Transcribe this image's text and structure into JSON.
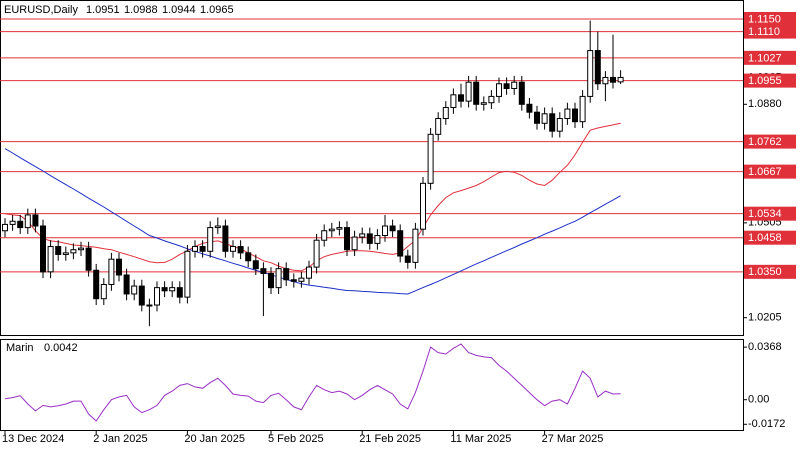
{
  "chart_data": {
    "type": "candlestick",
    "title": "EURUSD,Daily",
    "categories": [
      "13 Dec 2024",
      null,
      null,
      null,
      null,
      null,
      null,
      null,
      null,
      null,
      null,
      null,
      "2 Jan 2025",
      null,
      null,
      null,
      null,
      null,
      null,
      null,
      null,
      null,
      null,
      null,
      "20 Jan 2025",
      null,
      null,
      null,
      null,
      null,
      null,
      null,
      null,
      null,
      null,
      "5 Feb 2025",
      null,
      null,
      null,
      null,
      null,
      null,
      null,
      null,
      null,
      null,
      null,
      "21 Feb 2025",
      null,
      null,
      null,
      null,
      null,
      null,
      null,
      null,
      null,
      null,
      null,
      "11 Mar 2025",
      null,
      null,
      null,
      null,
      null,
      null,
      null,
      null,
      null,
      null,
      null,
      "27 Mar 2025",
      null,
      null,
      null,
      null,
      null,
      null,
      null,
      null,
      null,
      null
    ],
    "candles": [
      [
        1.048,
        1.052,
        1.046,
        1.05
      ],
      [
        1.05,
        1.053,
        1.048,
        1.051
      ],
      [
        1.051,
        1.053,
        1.047,
        1.049
      ],
      [
        1.049,
        1.055,
        1.047,
        1.053
      ],
      [
        1.053,
        1.055,
        1.0475,
        1.0495
      ],
      [
        1.0495,
        1.0515,
        1.033,
        1.035
      ],
      [
        1.035,
        1.045,
        1.033,
        1.043
      ],
      [
        1.043,
        1.045,
        1.0385,
        1.0405
      ],
      [
        1.0405,
        1.043,
        1.0385,
        1.041
      ],
      [
        1.041,
        1.044,
        1.039,
        1.042
      ],
      [
        1.042,
        1.0445,
        1.04,
        1.0425
      ],
      [
        1.0425,
        1.0445,
        1.0335,
        1.0355
      ],
      [
        1.0355,
        1.0375,
        1.0245,
        1.0265
      ],
      [
        1.0265,
        1.033,
        1.0245,
        1.031
      ],
      [
        1.031,
        1.041,
        1.029,
        1.039
      ],
      [
        1.039,
        1.041,
        1.032,
        1.034
      ],
      [
        1.034,
        1.036,
        1.026,
        1.028
      ],
      [
        1.028,
        1.0325,
        1.026,
        1.0305
      ],
      [
        1.0305,
        1.0325,
        1.0225,
        1.0245
      ],
      [
        1.0245,
        1.0265,
        1.0178,
        1.0245
      ],
      [
        1.0245,
        1.032,
        1.0225,
        1.03
      ],
      [
        1.03,
        1.032,
        1.027,
        1.029
      ],
      [
        1.029,
        1.032,
        1.027,
        1.03
      ],
      [
        1.03,
        1.032,
        1.025,
        1.027
      ],
      [
        1.027,
        1.0435,
        1.025,
        1.0415
      ],
      [
        1.0415,
        1.045,
        1.0395,
        1.043
      ],
      [
        1.043,
        1.045,
        1.0395,
        1.0415
      ],
      [
        1.0415,
        1.051,
        1.0395,
        1.049
      ],
      [
        1.049,
        1.0522,
        1.047,
        1.0495
      ],
      [
        1.0495,
        1.0515,
        1.0395,
        1.0415
      ],
      [
        1.0415,
        1.045,
        1.0395,
        1.043
      ],
      [
        1.043,
        1.045,
        1.039,
        1.041
      ],
      [
        1.041,
        1.043,
        1.0365,
        1.0385
      ],
      [
        1.0385,
        1.0405,
        1.034,
        1.036
      ],
      [
        1.036,
        1.038,
        1.021,
        1.0345
      ],
      [
        1.0345,
        1.0365,
        1.028,
        1.03
      ],
      [
        1.03,
        1.038,
        1.028,
        1.036
      ],
      [
        1.036,
        1.038,
        1.0305,
        1.0325
      ],
      [
        1.0325,
        1.0345,
        1.03,
        1.032
      ],
      [
        1.032,
        1.035,
        1.03,
        1.033
      ],
      [
        1.033,
        1.0385,
        1.031,
        1.0365
      ],
      [
        1.0365,
        1.047,
        1.0345,
        1.045
      ],
      [
        1.045,
        1.05,
        1.043,
        1.048
      ],
      [
        1.048,
        1.0505,
        1.046,
        1.0485
      ],
      [
        1.0485,
        1.051,
        1.0465,
        1.049
      ],
      [
        1.049,
        1.051,
        1.04,
        1.042
      ],
      [
        1.042,
        1.048,
        1.04,
        1.046
      ],
      [
        1.046,
        1.049,
        1.044,
        1.047
      ],
      [
        1.047,
        1.049,
        1.042,
        1.044
      ],
      [
        1.044,
        1.0485,
        1.042,
        1.0465
      ],
      [
        1.0465,
        1.053,
        1.0445,
        1.0495
      ],
      [
        1.0495,
        1.0515,
        1.046,
        1.048
      ],
      [
        1.048,
        1.05,
        1.038,
        1.04
      ],
      [
        1.04,
        1.042,
        1.036,
        1.038
      ],
      [
        1.038,
        1.0505,
        1.036,
        1.0485
      ],
      [
        1.0485,
        1.065,
        1.0465,
        1.063
      ],
      [
        1.063,
        1.0805,
        1.061,
        1.0785
      ],
      [
        1.0785,
        1.0855,
        1.0765,
        1.0835
      ],
      [
        1.0835,
        1.089,
        1.0815,
        1.087
      ],
      [
        1.087,
        1.093,
        1.085,
        1.091
      ],
      [
        1.091,
        1.0945,
        1.087,
        1.089
      ],
      [
        1.089,
        1.097,
        1.087,
        1.095
      ],
      [
        1.095,
        1.097,
        1.086,
        1.088
      ],
      [
        1.088,
        1.0905,
        1.086,
        1.0885
      ],
      [
        1.0885,
        1.0925,
        1.0865,
        1.0905
      ],
      [
        1.0905,
        1.0965,
        1.0885,
        1.0945
      ],
      [
        1.0945,
        1.0965,
        1.091,
        1.093
      ],
      [
        1.093,
        1.097,
        1.091,
        1.095
      ],
      [
        1.095,
        1.097,
        1.086,
        1.088
      ],
      [
        1.088,
        1.09,
        1.0835,
        1.0855
      ],
      [
        1.0855,
        1.0875,
        1.08,
        1.082
      ],
      [
        1.082,
        1.087,
        1.08,
        1.085
      ],
      [
        1.085,
        1.087,
        1.0775,
        1.0795
      ],
      [
        1.0795,
        1.0855,
        1.0775,
        1.0835
      ],
      [
        1.0835,
        1.0885,
        1.0815,
        1.0865
      ],
      [
        1.0865,
        1.0885,
        1.0805,
        1.0825
      ],
      [
        1.0825,
        1.0925,
        1.0805,
        1.0905
      ],
      [
        1.0905,
        1.1145,
        1.0885,
        1.105
      ],
      [
        1.105,
        1.111,
        1.0925,
        1.0945
      ],
      [
        1.0945,
        1.0985,
        1.089,
        1.0965
      ],
      [
        1.0965,
        1.11,
        1.093,
        1.095
      ],
      [
        1.0951,
        1.0988,
        1.0944,
        1.0965
      ]
    ],
    "series": [
      {
        "color": "#e0303a",
        "values": [
          1.0534,
          1.053,
          1.0528,
          1.051,
          1.048,
          1.0455,
          1.0448,
          1.0445,
          1.044,
          1.0435,
          1.0433,
          1.043,
          1.0428,
          1.0423,
          1.042,
          1.0412,
          1.0405,
          1.0398,
          1.039,
          1.0382,
          1.0379,
          1.038,
          1.039,
          1.0405,
          1.0417,
          1.043,
          1.044,
          1.0445,
          1.0448,
          1.044,
          1.043,
          1.0423,
          1.041,
          1.0398,
          1.0385,
          1.0379,
          1.0368,
          1.036,
          1.0355,
          1.0353,
          1.0365,
          1.0385,
          1.0398,
          1.0405,
          1.041,
          1.0415,
          1.0417,
          1.0417,
          1.0415,
          1.0412,
          1.0408,
          1.0405,
          1.041,
          1.043,
          1.045,
          1.049,
          1.053,
          1.056,
          1.0585,
          1.06,
          1.0607,
          1.0615,
          1.0623,
          1.0635,
          1.065,
          1.0664,
          1.0668,
          1.0665,
          1.0655,
          1.064,
          1.0628,
          1.0623,
          1.064,
          1.0665,
          1.0687,
          1.072,
          1.076,
          1.0798,
          1.0805,
          1.081,
          1.0815,
          1.082
        ]
      },
      {
        "color": "#1c2fc8",
        "values": [
          1.074,
          1.0726,
          1.0711,
          1.0697,
          1.0683,
          1.0669,
          1.0654,
          1.064,
          1.0626,
          1.0612,
          1.0598,
          1.0583,
          1.0569,
          1.0555,
          1.054,
          1.0525,
          1.051,
          1.0495,
          1.048,
          1.0465,
          1.0457,
          1.0448,
          1.044,
          1.0432,
          1.0423,
          1.0415,
          1.0407,
          1.04,
          1.0392,
          1.0385,
          1.0377,
          1.037,
          1.0362,
          1.0355,
          1.0348,
          1.0341,
          1.0333,
          1.0326,
          1.0319,
          1.0312,
          1.0308,
          1.0305,
          1.0301,
          1.0298,
          1.0294,
          1.0291,
          1.029,
          1.0288,
          1.0287,
          1.0285,
          1.0284,
          1.0283,
          1.0281,
          1.028,
          1.029,
          1.03,
          1.031,
          1.032,
          1.0331,
          1.0342,
          1.0353,
          1.0364,
          1.0375,
          1.0385,
          1.0396,
          1.0406,
          1.0417,
          1.0427,
          1.0438,
          1.0448,
          1.0458,
          1.0469,
          1.0479,
          1.0489,
          1.05,
          1.051,
          1.0523,
          1.0537,
          1.055,
          1.0564,
          1.0577,
          1.0591
        ]
      }
    ],
    "levels": [
      {
        "value": 1.115,
        "label": "1.1150"
      },
      {
        "value": 1.111,
        "label": "1.1110"
      },
      {
        "value": 1.1027,
        "label": "1.1027"
      },
      {
        "value": 1.0955,
        "label": "1.0955"
      },
      {
        "value": 1.0762,
        "label": "1.0762"
      },
      {
        "value": 1.0667,
        "label": "1.0667"
      },
      {
        "value": 1.0534,
        "label": "1.0534"
      },
      {
        "value": 1.0458,
        "label": "1.0458"
      },
      {
        "value": 1.035,
        "label": "1.0350"
      }
    ],
    "level_color": "#e0303a",
    "ylim": [
      1.0147,
      1.121
    ],
    "yticks": [
      {
        "value": 1.088,
        "label": "1.0880"
      },
      {
        "value": 1.0505,
        "label": "1.0505"
      },
      {
        "value": 1.0205,
        "label": "1.0205"
      }
    ],
    "oscillator": {
      "type": "line",
      "title": "Marin",
      "color": "#9a2fc4",
      "values": [
        0.0007,
        0.0015,
        0.0028,
        -0.003,
        -0.0078,
        -0.004,
        -0.005,
        -0.0042,
        -0.003,
        -0.001,
        -0.001,
        -0.01,
        -0.0149,
        -0.007,
        0,
        0.002,
        0.003,
        -0.005,
        -0.009,
        -0.007,
        -0.004,
        0.003,
        0.006,
        0.01,
        0.0113,
        0.009,
        0.008,
        0.012,
        0.015,
        0.01,
        0.004,
        0.003,
        0.0025,
        -0.001,
        -0.002,
        0.003,
        0.0045,
        0,
        -0.005,
        -0.007,
        0.002,
        0.01,
        0.007,
        0.005,
        0.006,
        0.004,
        0,
        0.003,
        0.007,
        0.01,
        0.007,
        0.004,
        -0.003,
        -0.0064,
        0.005,
        0.02,
        0.0368,
        0.033,
        0.032,
        0.036,
        0.039,
        0.033,
        0.031,
        0.03,
        0.0295,
        0.024,
        0.02,
        0.015,
        0.01,
        0.005,
        0,
        -0.0042,
        -0.001,
        0,
        -0.003,
        0.008,
        0.02,
        0.015,
        0.002,
        0.006,
        0.004,
        0.0042
      ],
      "ylim": [
        -0.0219,
        0.0418
      ],
      "yticks": [
        0.0368,
        {
          "value": 0,
          "label": "0.00"
        },
        -0.0172
      ]
    }
  }
}
